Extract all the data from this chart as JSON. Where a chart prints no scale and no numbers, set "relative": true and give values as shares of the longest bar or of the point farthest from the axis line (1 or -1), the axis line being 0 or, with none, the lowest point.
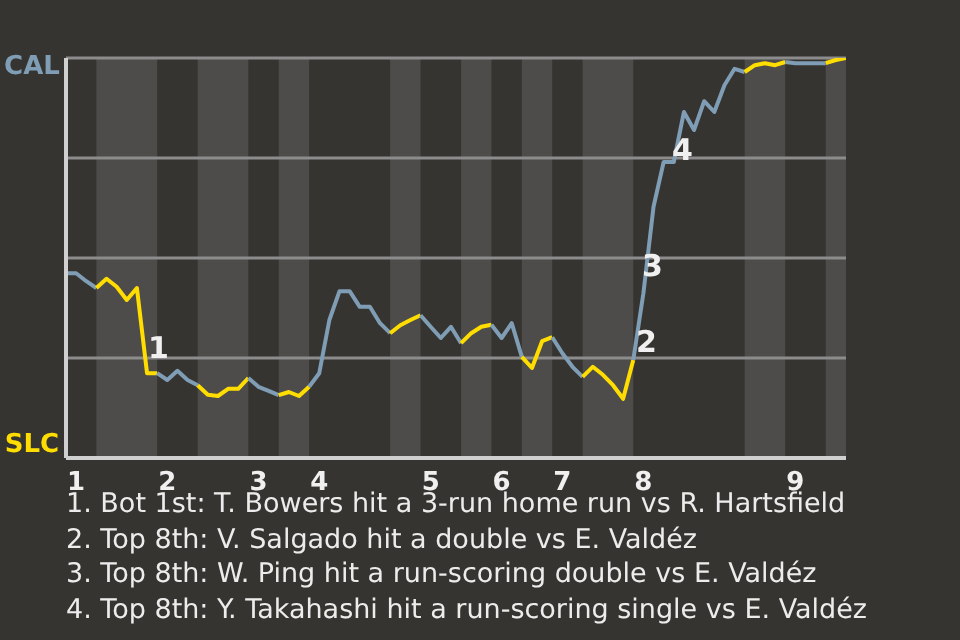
{
  "chart_data": {
    "type": "line",
    "relative": true,
    "categories": [
      null,
      "1",
      null,
      null,
      null,
      null,
      null,
      null,
      null,
      null,
      "2",
      null,
      null,
      null,
      null,
      null,
      null,
      null,
      null,
      "3",
      null,
      null,
      null,
      null,
      null,
      "4",
      null,
      null,
      null,
      null,
      null,
      null,
      null,
      null,
      null,
      null,
      "5",
      null,
      null,
      null,
      null,
      null,
      null,
      "6",
      null,
      null,
      null,
      null,
      null,
      "7",
      null,
      null,
      null,
      null,
      null,
      null,
      null,
      "8",
      null,
      null,
      null,
      null,
      null,
      null,
      null,
      null,
      null,
      null,
      null,
      null,
      null,
      null,
      "9",
      null,
      null,
      null,
      null,
      null
    ],
    "series": [
      {
        "color": "#7f9db4",
        "values": [
          0.462,
          0.462,
          0.442,
          0.425,
          null,
          null,
          null,
          null,
          null,
          null,
          null,
          null,
          null,
          null,
          null,
          null,
          null,
          null,
          null,
          null,
          null,
          null,
          null,
          null,
          null,
          null,
          null,
          null,
          null,
          null,
          null,
          null,
          null,
          null,
          null,
          null,
          null,
          null,
          null,
          null,
          null,
          null,
          null,
          null,
          null,
          null,
          null,
          null,
          null,
          null,
          null,
          null,
          null,
          null,
          null,
          null,
          null,
          null,
          null,
          null,
          null,
          null,
          null,
          null,
          null,
          null,
          null,
          null,
          null,
          null,
          null,
          null,
          null,
          null,
          null,
          null,
          null,
          null
        ]
      },
      {
        "color": "#ffdd00",
        "values": [
          null,
          null,
          null,
          0.425,
          0.448,
          0.428,
          0.395,
          0.425,
          0.212,
          0.212,
          null,
          null,
          null,
          null,
          null,
          null,
          null,
          null,
          null,
          null,
          null,
          null,
          null,
          null,
          null,
          null,
          null,
          null,
          null,
          null,
          null,
          null,
          null,
          null,
          null,
          null,
          null,
          null,
          null,
          null,
          null,
          null,
          null,
          null,
          null,
          null,
          null,
          null,
          null,
          null,
          null,
          null,
          null,
          null,
          null,
          null,
          null,
          null,
          null,
          null,
          null,
          null,
          null,
          null,
          null,
          null,
          null,
          null,
          null,
          null,
          null,
          null,
          null,
          null,
          null,
          null,
          null,
          null
        ]
      },
      {
        "color": "#7f9db4",
        "values": [
          null,
          null,
          null,
          null,
          null,
          null,
          null,
          null,
          null,
          0.212,
          0.195,
          0.218,
          0.195,
          0.182,
          null,
          null,
          null,
          null,
          null,
          null,
          null,
          null,
          null,
          null,
          null,
          null,
          null,
          null,
          null,
          null,
          null,
          null,
          null,
          null,
          null,
          null,
          null,
          null,
          null,
          null,
          null,
          null,
          null,
          null,
          null,
          null,
          null,
          null,
          null,
          null,
          null,
          null,
          null,
          null,
          null,
          null,
          null,
          null,
          null,
          null,
          null,
          null,
          null,
          null,
          null,
          null,
          null,
          null,
          null,
          null,
          null,
          null,
          null,
          null,
          null,
          null,
          null,
          null
        ]
      },
      {
        "color": "#ffdd00",
        "values": [
          null,
          null,
          null,
          null,
          null,
          null,
          null,
          null,
          null,
          null,
          null,
          null,
          null,
          0.182,
          0.158,
          0.155,
          0.173,
          0.173,
          0.2,
          null,
          null,
          null,
          null,
          null,
          null,
          null,
          null,
          null,
          null,
          null,
          null,
          null,
          null,
          null,
          null,
          null,
          null,
          null,
          null,
          null,
          null,
          null,
          null,
          null,
          null,
          null,
          null,
          null,
          null,
          null,
          null,
          null,
          null,
          null,
          null,
          null,
          null,
          null,
          null,
          null,
          null,
          null,
          null,
          null,
          null,
          null,
          null,
          null,
          null,
          null,
          null,
          null,
          null,
          null,
          null,
          null,
          null,
          null
        ]
      },
      {
        "color": "#7f9db4",
        "values": [
          null,
          null,
          null,
          null,
          null,
          null,
          null,
          null,
          null,
          null,
          null,
          null,
          null,
          null,
          null,
          null,
          null,
          null,
          0.2,
          0.178,
          0.168,
          0.157,
          null,
          null,
          null,
          null,
          null,
          null,
          null,
          null,
          null,
          null,
          null,
          null,
          null,
          null,
          null,
          null,
          null,
          null,
          null,
          null,
          null,
          null,
          null,
          null,
          null,
          null,
          null,
          null,
          null,
          null,
          null,
          null,
          null,
          null,
          null,
          null,
          null,
          null,
          null,
          null,
          null,
          null,
          null,
          null,
          null,
          null,
          null,
          null,
          null,
          null,
          null,
          null,
          null,
          null,
          null,
          null
        ]
      },
      {
        "color": "#ffdd00",
        "values": [
          null,
          null,
          null,
          null,
          null,
          null,
          null,
          null,
          null,
          null,
          null,
          null,
          null,
          null,
          null,
          null,
          null,
          null,
          null,
          null,
          null,
          0.157,
          0.165,
          0.155,
          0.178,
          null,
          null,
          null,
          null,
          null,
          null,
          null,
          null,
          null,
          null,
          null,
          null,
          null,
          null,
          null,
          null,
          null,
          null,
          null,
          null,
          null,
          null,
          null,
          null,
          null,
          null,
          null,
          null,
          null,
          null,
          null,
          null,
          null,
          null,
          null,
          null,
          null,
          null,
          null,
          null,
          null,
          null,
          null,
          null,
          null,
          null,
          null,
          null,
          null,
          null,
          null,
          null,
          null
        ]
      },
      {
        "color": "#7f9db4",
        "values": [
          null,
          null,
          null,
          null,
          null,
          null,
          null,
          null,
          null,
          null,
          null,
          null,
          null,
          null,
          null,
          null,
          null,
          null,
          null,
          null,
          null,
          null,
          null,
          null,
          0.178,
          0.212,
          0.345,
          0.417,
          0.417,
          0.378,
          0.378,
          0.337,
          0.312,
          null,
          null,
          null,
          null,
          null,
          null,
          null,
          null,
          null,
          null,
          null,
          null,
          null,
          null,
          null,
          null,
          null,
          null,
          null,
          null,
          null,
          null,
          null,
          null,
          null,
          null,
          null,
          null,
          null,
          null,
          null,
          null,
          null,
          null,
          null,
          null,
          null,
          null,
          null,
          null,
          null,
          null,
          null,
          null,
          null
        ]
      },
      {
        "color": "#ffdd00",
        "values": [
          null,
          null,
          null,
          null,
          null,
          null,
          null,
          null,
          null,
          null,
          null,
          null,
          null,
          null,
          null,
          null,
          null,
          null,
          null,
          null,
          null,
          null,
          null,
          null,
          null,
          null,
          null,
          null,
          null,
          null,
          null,
          null,
          0.312,
          0.332,
          0.345,
          0.357,
          null,
          null,
          null,
          null,
          null,
          null,
          null,
          null,
          null,
          null,
          null,
          null,
          null,
          null,
          null,
          null,
          null,
          null,
          null,
          null,
          null,
          null,
          null,
          null,
          null,
          null,
          null,
          null,
          null,
          null,
          null,
          null,
          null,
          null,
          null,
          null,
          null,
          null,
          null,
          null,
          null,
          null
        ]
      },
      {
        "color": "#7f9db4",
        "values": [
          null,
          null,
          null,
          null,
          null,
          null,
          null,
          null,
          null,
          null,
          null,
          null,
          null,
          null,
          null,
          null,
          null,
          null,
          null,
          null,
          null,
          null,
          null,
          null,
          null,
          null,
          null,
          null,
          null,
          null,
          null,
          null,
          null,
          null,
          null,
          0.357,
          0.328,
          0.3,
          0.328,
          0.287,
          null,
          null,
          null,
          null,
          null,
          null,
          null,
          null,
          null,
          null,
          null,
          null,
          null,
          null,
          null,
          null,
          null,
          null,
          null,
          null,
          null,
          null,
          null,
          null,
          null,
          null,
          null,
          null,
          null,
          null,
          null,
          null,
          null,
          null,
          null,
          null,
          null,
          null
        ]
      },
      {
        "color": "#ffdd00",
        "values": [
          null,
          null,
          null,
          null,
          null,
          null,
          null,
          null,
          null,
          null,
          null,
          null,
          null,
          null,
          null,
          null,
          null,
          null,
          null,
          null,
          null,
          null,
          null,
          null,
          null,
          null,
          null,
          null,
          null,
          null,
          null,
          null,
          null,
          null,
          null,
          null,
          null,
          null,
          null,
          0.287,
          0.312,
          0.328,
          0.333,
          null,
          null,
          null,
          null,
          null,
          null,
          null,
          null,
          null,
          null,
          null,
          null,
          null,
          null,
          null,
          null,
          null,
          null,
          null,
          null,
          null,
          null,
          null,
          null,
          null,
          null,
          null,
          null,
          null,
          null,
          null,
          null,
          null,
          null,
          null
        ]
      },
      {
        "color": "#7f9db4",
        "values": [
          null,
          null,
          null,
          null,
          null,
          null,
          null,
          null,
          null,
          null,
          null,
          null,
          null,
          null,
          null,
          null,
          null,
          null,
          null,
          null,
          null,
          null,
          null,
          null,
          null,
          null,
          null,
          null,
          null,
          null,
          null,
          null,
          null,
          null,
          null,
          null,
          null,
          null,
          null,
          null,
          null,
          null,
          0.333,
          0.3,
          0.337,
          0.253,
          null,
          null,
          null,
          null,
          null,
          null,
          null,
          null,
          null,
          null,
          null,
          null,
          null,
          null,
          null,
          null,
          null,
          null,
          null,
          null,
          null,
          null,
          null,
          null,
          null,
          null,
          null,
          null,
          null,
          null,
          null,
          null
        ]
      },
      {
        "color": "#ffdd00",
        "values": [
          null,
          null,
          null,
          null,
          null,
          null,
          null,
          null,
          null,
          null,
          null,
          null,
          null,
          null,
          null,
          null,
          null,
          null,
          null,
          null,
          null,
          null,
          null,
          null,
          null,
          null,
          null,
          null,
          null,
          null,
          null,
          null,
          null,
          null,
          null,
          null,
          null,
          null,
          null,
          null,
          null,
          null,
          null,
          null,
          null,
          0.253,
          0.225,
          0.292,
          0.302,
          null,
          null,
          null,
          null,
          null,
          null,
          null,
          null,
          null,
          null,
          null,
          null,
          null,
          null,
          null,
          null,
          null,
          null,
          null,
          null,
          null,
          null,
          null,
          null,
          null,
          null,
          null,
          null,
          null
        ]
      },
      {
        "color": "#7f9db4",
        "values": [
          null,
          null,
          null,
          null,
          null,
          null,
          null,
          null,
          null,
          null,
          null,
          null,
          null,
          null,
          null,
          null,
          null,
          null,
          null,
          null,
          null,
          null,
          null,
          null,
          null,
          null,
          null,
          null,
          null,
          null,
          null,
          null,
          null,
          null,
          null,
          null,
          null,
          null,
          null,
          null,
          null,
          null,
          null,
          null,
          null,
          null,
          null,
          null,
          0.302,
          0.262,
          0.228,
          0.203,
          null,
          null,
          null,
          null,
          null,
          null,
          null,
          null,
          null,
          null,
          null,
          null,
          null,
          null,
          null,
          null,
          null,
          null,
          null,
          null,
          null,
          null,
          null,
          null,
          null,
          null
        ]
      },
      {
        "color": "#ffdd00",
        "values": [
          null,
          null,
          null,
          null,
          null,
          null,
          null,
          null,
          null,
          null,
          null,
          null,
          null,
          null,
          null,
          null,
          null,
          null,
          null,
          null,
          null,
          null,
          null,
          null,
          null,
          null,
          null,
          null,
          null,
          null,
          null,
          null,
          null,
          null,
          null,
          null,
          null,
          null,
          null,
          null,
          null,
          null,
          null,
          null,
          null,
          null,
          null,
          null,
          null,
          null,
          null,
          0.203,
          0.228,
          0.208,
          0.182,
          0.148,
          0.245,
          null,
          null,
          null,
          null,
          null,
          null,
          null,
          null,
          null,
          null,
          null,
          null,
          null,
          null,
          null,
          null,
          null,
          null,
          null,
          null,
          null
        ]
      },
      {
        "color": "#7f9db4",
        "values": [
          null,
          null,
          null,
          null,
          null,
          null,
          null,
          null,
          null,
          null,
          null,
          null,
          null,
          null,
          null,
          null,
          null,
          null,
          null,
          null,
          null,
          null,
          null,
          null,
          null,
          null,
          null,
          null,
          null,
          null,
          null,
          null,
          null,
          null,
          null,
          null,
          null,
          null,
          null,
          null,
          null,
          null,
          null,
          null,
          null,
          null,
          null,
          null,
          null,
          null,
          null,
          null,
          null,
          null,
          null,
          null,
          0.245,
          0.412,
          0.628,
          0.74,
          0.74,
          0.865,
          0.82,
          0.892,
          0.865,
          0.932,
          0.973,
          0.965,
          null,
          null,
          null,
          null,
          null,
          null,
          null,
          null,
          null,
          null
        ]
      },
      {
        "color": "#ffdd00",
        "values": [
          null,
          null,
          null,
          null,
          null,
          null,
          null,
          null,
          null,
          null,
          null,
          null,
          null,
          null,
          null,
          null,
          null,
          null,
          null,
          null,
          null,
          null,
          null,
          null,
          null,
          null,
          null,
          null,
          null,
          null,
          null,
          null,
          null,
          null,
          null,
          null,
          null,
          null,
          null,
          null,
          null,
          null,
          null,
          null,
          null,
          null,
          null,
          null,
          null,
          null,
          null,
          null,
          null,
          null,
          null,
          null,
          null,
          null,
          null,
          null,
          null,
          null,
          null,
          null,
          null,
          null,
          null,
          0.965,
          0.982,
          0.987,
          0.982,
          0.99,
          null,
          null,
          null,
          null,
          null,
          null
        ]
      },
      {
        "color": "#7f9db4",
        "values": [
          null,
          null,
          null,
          null,
          null,
          null,
          null,
          null,
          null,
          null,
          null,
          null,
          null,
          null,
          null,
          null,
          null,
          null,
          null,
          null,
          null,
          null,
          null,
          null,
          null,
          null,
          null,
          null,
          null,
          null,
          null,
          null,
          null,
          null,
          null,
          null,
          null,
          null,
          null,
          null,
          null,
          null,
          null,
          null,
          null,
          null,
          null,
          null,
          null,
          null,
          null,
          null,
          null,
          null,
          null,
          null,
          null,
          null,
          null,
          null,
          null,
          null,
          null,
          null,
          null,
          null,
          null,
          null,
          null,
          null,
          null,
          0.99,
          0.987,
          0.987,
          0.987,
          0.987,
          null,
          null
        ]
      },
      {
        "color": "#ffdd00",
        "values": [
          null,
          null,
          null,
          null,
          null,
          null,
          null,
          null,
          null,
          null,
          null,
          null,
          null,
          null,
          null,
          null,
          null,
          null,
          null,
          null,
          null,
          null,
          null,
          null,
          null,
          null,
          null,
          null,
          null,
          null,
          null,
          null,
          null,
          null,
          null,
          null,
          null,
          null,
          null,
          null,
          null,
          null,
          null,
          null,
          null,
          null,
          null,
          null,
          null,
          null,
          null,
          null,
          null,
          null,
          null,
          null,
          null,
          null,
          null,
          null,
          null,
          null,
          null,
          null,
          null,
          null,
          null,
          null,
          null,
          null,
          null,
          null,
          null,
          null,
          null,
          0.987,
          0.995,
          1
        ]
      }
    ],
    "ref_lines": [
      {
        "axis": "y",
        "value": 0.25,
        "color": "#8c8c8c"
      },
      {
        "axis": "y",
        "value": 0.5,
        "color": "#8c8c8c"
      },
      {
        "axis": "y",
        "value": 0.75,
        "color": "#8c8c8c"
      },
      {
        "axis": "y",
        "value": 1,
        "color": "#8c8c8c"
      }
    ],
    "annotations": [
      "CAL",
      "SLC",
      "1",
      "2",
      "3",
      "4",
      "1. Bot 1st: T. Bowers hit a 3-run home run vs R. Hartsfield",
      "2. Top 8th: V. Salgado hit a double vs E. Valdéz",
      "3. Top 8th: W. Ping hit a run-scoring double vs E. Valdéz",
      "4. Top 8th: Y. Takahashi hit a run-scoring single vs E. Valdéz"
    ]
  }
}
